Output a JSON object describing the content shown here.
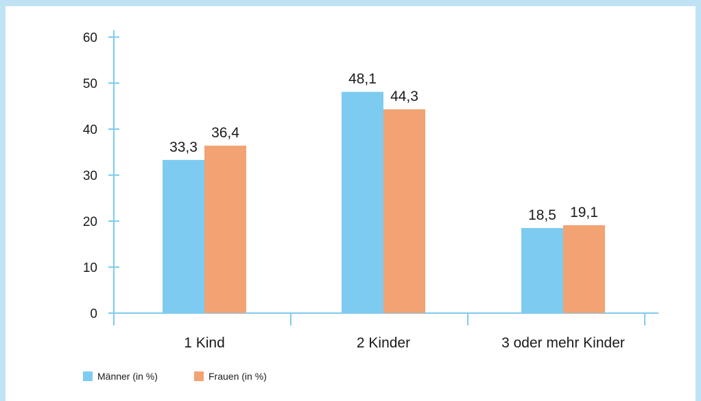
{
  "chart_data": {
    "type": "bar",
    "categories": [
      "1 Kind",
      "2 Kinder",
      "3 oder mehr Kinder"
    ],
    "series": [
      {
        "name": "Männer (in %)",
        "values": [
          33.3,
          48.1,
          18.5
        ],
        "labels": [
          "33,3",
          "48,1",
          "18,5"
        ],
        "color": "#7ecbf1"
      },
      {
        "name": "Frauen (in %)",
        "values": [
          36.4,
          44.3,
          19.1
        ],
        "labels": [
          "36,4",
          "44,3",
          "19,1"
        ],
        "color": "#f2a273"
      }
    ],
    "ylim": [
      0,
      60
    ],
    "yticks": [
      0,
      10,
      20,
      30,
      40,
      50,
      60
    ],
    "axis_color": "#7ecbf1",
    "grid": false,
    "legend_position": "bottom-left"
  }
}
